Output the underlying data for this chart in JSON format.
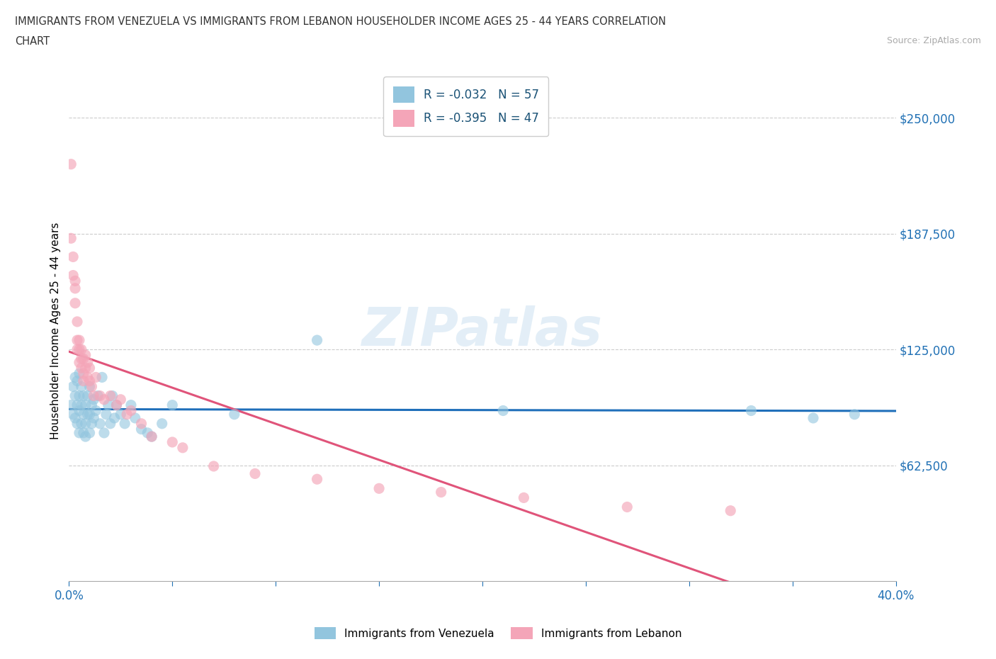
{
  "title_line1": "IMMIGRANTS FROM VENEZUELA VS IMMIGRANTS FROM LEBANON HOUSEHOLDER INCOME AGES 25 - 44 YEARS CORRELATION",
  "title_line2": "CHART",
  "source": "Source: ZipAtlas.com",
  "ylabel": "Householder Income Ages 25 - 44 years",
  "xlim": [
    0.0,
    0.4
  ],
  "ylim": [
    0,
    270000
  ],
  "yticks": [
    0,
    62500,
    125000,
    187500,
    250000
  ],
  "ytick_labels": [
    "",
    "$62,500",
    "$125,000",
    "$187,500",
    "$250,000"
  ],
  "xticks": [
    0.0,
    0.05,
    0.1,
    0.15,
    0.2,
    0.25,
    0.3,
    0.35,
    0.4
  ],
  "xtick_labels": [
    "0.0%",
    "",
    "",
    "",
    "",
    "",
    "",
    "",
    "40.0%"
  ],
  "color_venezuela": "#92c5de",
  "color_lebanon": "#f4a5b8",
  "R_venezuela": -0.032,
  "N_venezuela": 57,
  "R_lebanon": -0.395,
  "N_lebanon": 47,
  "legend_label_venezuela": "Immigrants from Venezuela",
  "legend_label_lebanon": "Immigrants from Lebanon",
  "watermark": "ZIPatlas",
  "venezuela_x": [
    0.001,
    0.002,
    0.002,
    0.003,
    0.003,
    0.003,
    0.004,
    0.004,
    0.004,
    0.005,
    0.005,
    0.005,
    0.005,
    0.006,
    0.006,
    0.006,
    0.007,
    0.007,
    0.007,
    0.008,
    0.008,
    0.008,
    0.009,
    0.009,
    0.01,
    0.01,
    0.01,
    0.011,
    0.011,
    0.012,
    0.012,
    0.013,
    0.014,
    0.015,
    0.016,
    0.017,
    0.018,
    0.019,
    0.02,
    0.021,
    0.022,
    0.023,
    0.025,
    0.027,
    0.03,
    0.032,
    0.035,
    0.038,
    0.04,
    0.045,
    0.05,
    0.08,
    0.12,
    0.21,
    0.33,
    0.36,
    0.38
  ],
  "venezuela_y": [
    95000,
    105000,
    90000,
    88000,
    100000,
    110000,
    85000,
    95000,
    108000,
    80000,
    92000,
    100000,
    112000,
    85000,
    95000,
    105000,
    80000,
    90000,
    100000,
    85000,
    95000,
    78000,
    90000,
    100000,
    80000,
    90000,
    105000,
    85000,
    95000,
    88000,
    98000,
    92000,
    100000,
    85000,
    110000,
    80000,
    90000,
    95000,
    85000,
    100000,
    88000,
    95000,
    90000,
    85000,
    95000,
    88000,
    82000,
    80000,
    78000,
    85000,
    95000,
    90000,
    130000,
    92000,
    92000,
    88000,
    90000
  ],
  "lebanon_x": [
    0.001,
    0.001,
    0.002,
    0.002,
    0.003,
    0.003,
    0.003,
    0.004,
    0.004,
    0.004,
    0.005,
    0.005,
    0.005,
    0.006,
    0.006,
    0.006,
    0.007,
    0.007,
    0.007,
    0.008,
    0.008,
    0.009,
    0.009,
    0.01,
    0.01,
    0.011,
    0.012,
    0.013,
    0.015,
    0.017,
    0.02,
    0.023,
    0.025,
    0.028,
    0.03,
    0.035,
    0.04,
    0.05,
    0.055,
    0.07,
    0.09,
    0.12,
    0.15,
    0.18,
    0.22,
    0.27,
    0.32
  ],
  "lebanon_y": [
    225000,
    185000,
    175000,
    165000,
    158000,
    150000,
    162000,
    130000,
    125000,
    140000,
    125000,
    118000,
    130000,
    120000,
    115000,
    125000,
    112000,
    108000,
    120000,
    115000,
    122000,
    110000,
    118000,
    108000,
    115000,
    105000,
    100000,
    110000,
    100000,
    98000,
    100000,
    95000,
    98000,
    90000,
    92000,
    85000,
    78000,
    75000,
    72000,
    62000,
    58000,
    55000,
    50000,
    48000,
    45000,
    40000,
    38000
  ]
}
